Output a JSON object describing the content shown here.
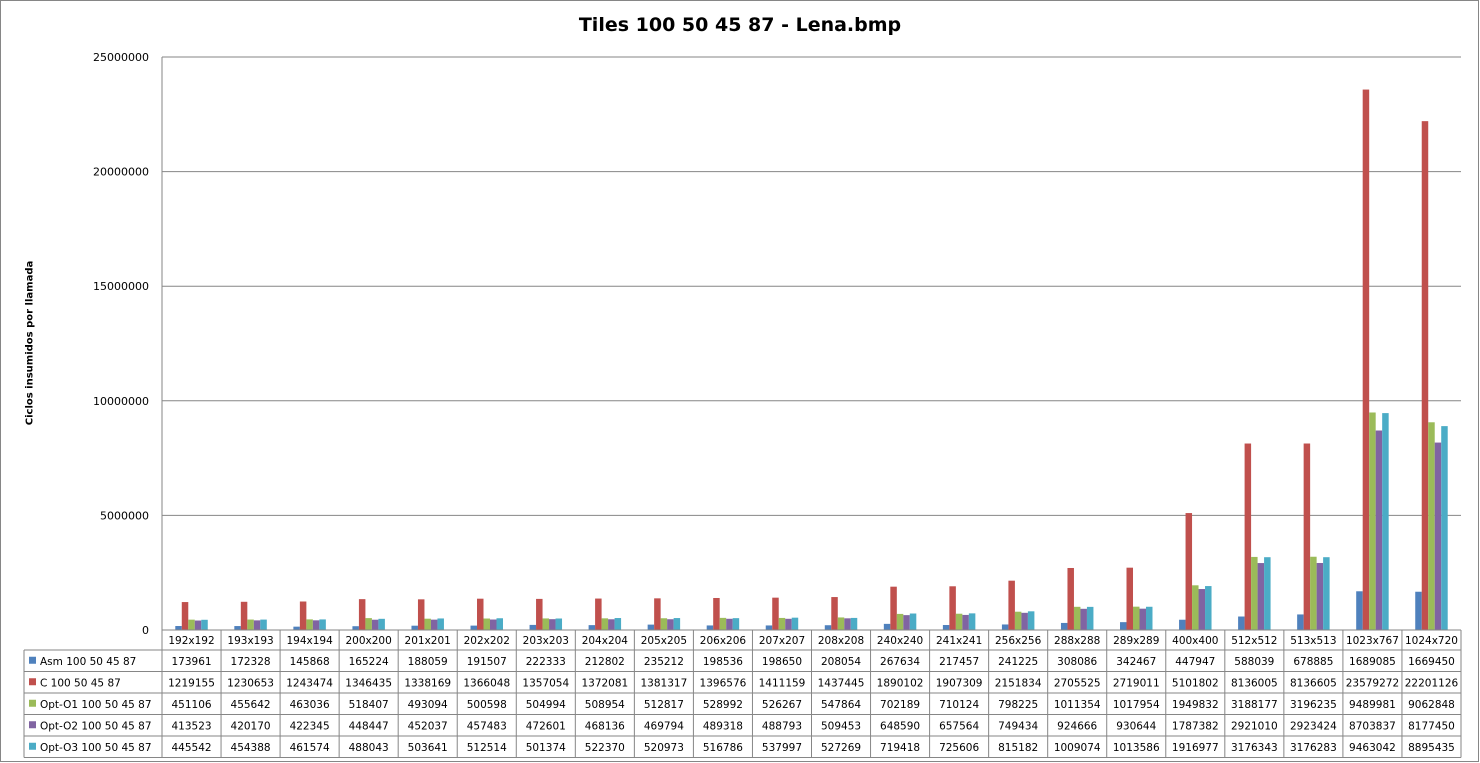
{
  "chart_data": {
    "type": "bar",
    "title": "Tiles 100 50 45 87 - Lena.bmp",
    "ylabel": "Ciclos insumidos por llamada",
    "ylim": [
      0,
      25000000
    ],
    "yticks": [
      "0",
      "5000000",
      "10000000",
      "15000000",
      "20000000",
      "25000000"
    ],
    "grid": true,
    "legend": "data-table",
    "categories": [
      "192x192",
      "193x193",
      "194x194",
      "200x200",
      "201x201",
      "202x202",
      "203x203",
      "204x204",
      "205x205",
      "206x206",
      "207x207",
      "208x208",
      "240x240",
      "241x241",
      "256x256",
      "288x288",
      "289x289",
      "400x400",
      "512x512",
      "513x513",
      "1023x767",
      "1024x720"
    ],
    "series": [
      {
        "name": "Asm 100 50 45 87",
        "color": "#4F81BD",
        "values": [
          173961,
          172328,
          145868,
          165224,
          188059,
          191507,
          222333,
          212802,
          235212,
          198536,
          198650,
          208054,
          267634,
          217457,
          241225,
          308086,
          342467,
          447947,
          588039,
          678885,
          1689085,
          1669450
        ]
      },
      {
        "name": "C  100 50 45 87",
        "color": "#C0504D",
        "values": [
          1219155,
          1230653,
          1243474,
          1346435,
          1338169,
          1366048,
          1357054,
          1372081,
          1381317,
          1396576,
          1411159,
          1437445,
          1890102,
          1907309,
          2151834,
          2705525,
          2719011,
          5101802,
          8136005,
          8136605,
          23579272,
          22201126
        ]
      },
      {
        "name": "Opt-O1  100 50 45 87",
        "color": "#9BBB59",
        "values": [
          451106,
          455642,
          463036,
          518407,
          493094,
          500598,
          504994,
          508954,
          512817,
          528992,
          526267,
          547864,
          702189,
          710124,
          798225,
          1011354,
          1017954,
          1949832,
          3188177,
          3196235,
          9489981,
          9062848
        ]
      },
      {
        "name": "Opt-O2  100 50 45 87",
        "color": "#8064A2",
        "values": [
          413523,
          420170,
          422345,
          448447,
          452037,
          457483,
          472601,
          468136,
          469794,
          489318,
          488793,
          509453,
          648590,
          657564,
          749434,
          924666,
          930644,
          1787382,
          2921010,
          2923424,
          8703837,
          8177450
        ]
      },
      {
        "name": "Opt-O3  100 50 45 87",
        "color": "#4BACC6",
        "values": [
          445542,
          454388,
          461574,
          488043,
          503641,
          512514,
          501374,
          522370,
          520973,
          516786,
          537997,
          527269,
          719418,
          725606,
          815182,
          1009074,
          1013586,
          1916977,
          3176343,
          3176283,
          9463042,
          8895435
        ]
      }
    ]
  }
}
